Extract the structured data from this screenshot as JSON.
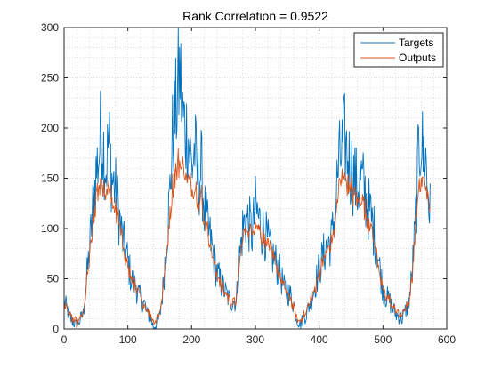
{
  "chart_data": {
    "type": "line",
    "title": "Rank Correlation = 0.9522",
    "xlabel": "",
    "ylabel": "",
    "xlim": [
      0,
      600
    ],
    "ylim": [
      0,
      300
    ],
    "xticks": [
      "0",
      "100",
      "200",
      "300",
      "400",
      "500",
      "600"
    ],
    "yticks": [
      "0",
      "50",
      "100",
      "150",
      "200",
      "250",
      "300"
    ],
    "grid": "minor-dotted",
    "legend_position": "top-right",
    "n_points": 575,
    "series": [
      {
        "name": "Targets",
        "color": "#0072BD",
        "x": [
          0,
          10,
          20,
          30,
          40,
          45,
          50,
          55,
          58,
          62,
          66,
          70,
          75,
          80,
          85,
          90,
          95,
          100,
          105,
          110,
          115,
          120,
          125,
          130,
          135,
          140,
          145,
          150,
          155,
          160,
          165,
          170,
          175,
          178,
          182,
          186,
          190,
          195,
          200,
          205,
          210,
          215,
          220,
          225,
          230,
          235,
          240,
          250,
          260,
          270,
          275,
          280,
          285,
          290,
          295,
          300,
          305,
          310,
          315,
          320,
          325,
          330,
          335,
          340,
          345,
          350,
          355,
          360,
          365,
          370,
          380,
          390,
          400,
          410,
          420,
          425,
          430,
          435,
          440,
          445,
          450,
          455,
          460,
          465,
          470,
          475,
          480,
          485,
          490,
          495,
          500,
          505,
          510,
          520,
          530,
          540,
          545,
          550,
          553,
          556,
          560,
          563,
          566,
          570,
          575
        ],
        "y": [
          28,
          10,
          3,
          15,
          80,
          120,
          155,
          175,
          200,
          180,
          160,
          190,
          150,
          140,
          120,
          95,
          80,
          68,
          50,
          45,
          38,
          30,
          28,
          15,
          12,
          2,
          5,
          12,
          40,
          85,
          125,
          190,
          215,
          235,
          255,
          210,
          200,
          190,
          160,
          180,
          145,
          160,
          120,
          100,
          88,
          70,
          55,
          40,
          28,
          28,
          70,
          100,
          110,
          105,
          95,
          120,
          110,
          100,
          95,
          85,
          75,
          70,
          62,
          52,
          40,
          38,
          33,
          25,
          10,
          5,
          15,
          35,
          60,
          80,
          90,
          120,
          160,
          175,
          188,
          170,
          160,
          150,
          140,
          150,
          140,
          125,
          115,
          100,
          85,
          60,
          40,
          32,
          28,
          15,
          10,
          25,
          50,
          95,
          130,
          175,
          195,
          170,
          178,
          140,
          110
        ]
      },
      {
        "name": "Outputs",
        "color": "#D95319",
        "x": [
          0,
          10,
          20,
          30,
          40,
          45,
          50,
          55,
          58,
          62,
          66,
          70,
          75,
          80,
          85,
          90,
          95,
          100,
          105,
          110,
          115,
          120,
          125,
          130,
          135,
          140,
          145,
          150,
          155,
          160,
          165,
          170,
          175,
          178,
          182,
          186,
          190,
          195,
          200,
          205,
          210,
          215,
          220,
          225,
          230,
          235,
          240,
          250,
          260,
          270,
          275,
          280,
          285,
          290,
          295,
          300,
          305,
          310,
          315,
          320,
          325,
          330,
          335,
          340,
          345,
          350,
          355,
          360,
          365,
          370,
          380,
          390,
          400,
          410,
          420,
          425,
          430,
          435,
          440,
          445,
          450,
          455,
          460,
          465,
          470,
          475,
          480,
          485,
          490,
          495,
          500,
          505,
          510,
          520,
          530,
          540,
          545,
          550,
          553,
          556,
          560,
          563,
          566,
          570,
          575
        ],
        "y": [
          25,
          12,
          6,
          15,
          70,
          100,
          130,
          140,
          150,
          145,
          135,
          140,
          125,
          120,
          110,
          90,
          75,
          62,
          50,
          45,
          38,
          30,
          25,
          18,
          15,
          8,
          10,
          15,
          40,
          75,
          105,
          140,
          155,
          162,
          165,
          160,
          155,
          150,
          140,
          140,
          128,
          130,
          108,
          95,
          80,
          65,
          52,
          38,
          28,
          28,
          65,
          90,
          100,
          98,
          95,
          105,
          100,
          95,
          90,
          82,
          75,
          68,
          60,
          50,
          40,
          36,
          30,
          22,
          12,
          8,
          18,
          35,
          55,
          75,
          85,
          105,
          135,
          148,
          150,
          145,
          140,
          135,
          128,
          130,
          122,
          112,
          102,
          90,
          78,
          55,
          40,
          32,
          28,
          18,
          14,
          25,
          45,
          85,
          115,
          140,
          155,
          145,
          150,
          130,
          115
        ]
      }
    ]
  }
}
